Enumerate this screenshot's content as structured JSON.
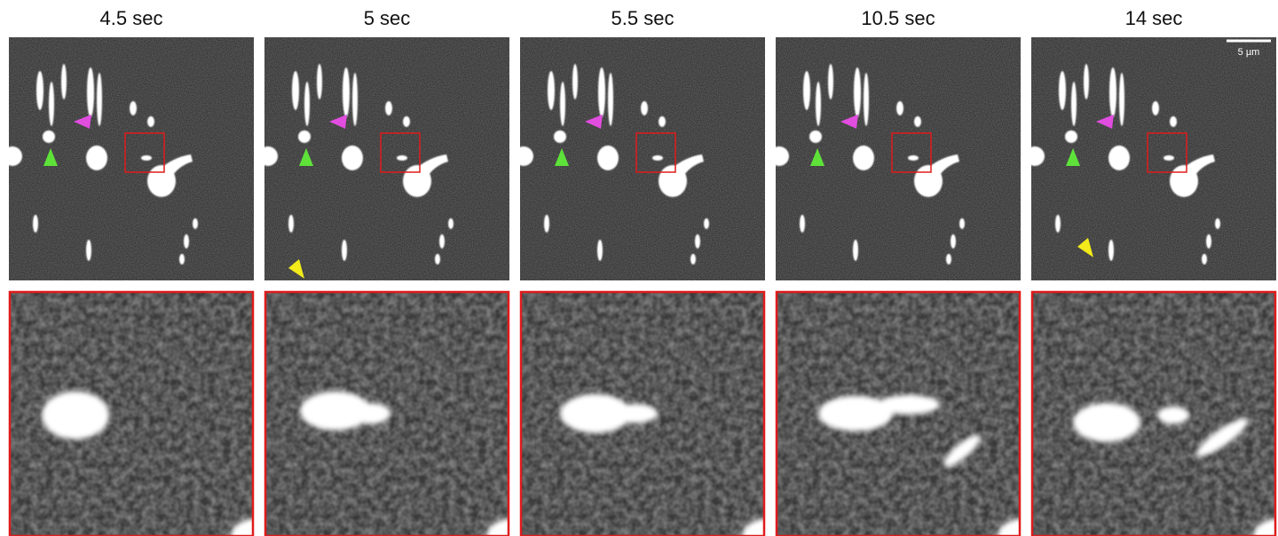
{
  "panels": [
    {
      "time": "4.5 sec"
    },
    {
      "time": "5 sec"
    },
    {
      "time": "5.5 sec"
    },
    {
      "time": "10.5 sec"
    },
    {
      "time": "14 sec"
    }
  ],
  "scale_bar": {
    "label": "5 µm"
  }
}
